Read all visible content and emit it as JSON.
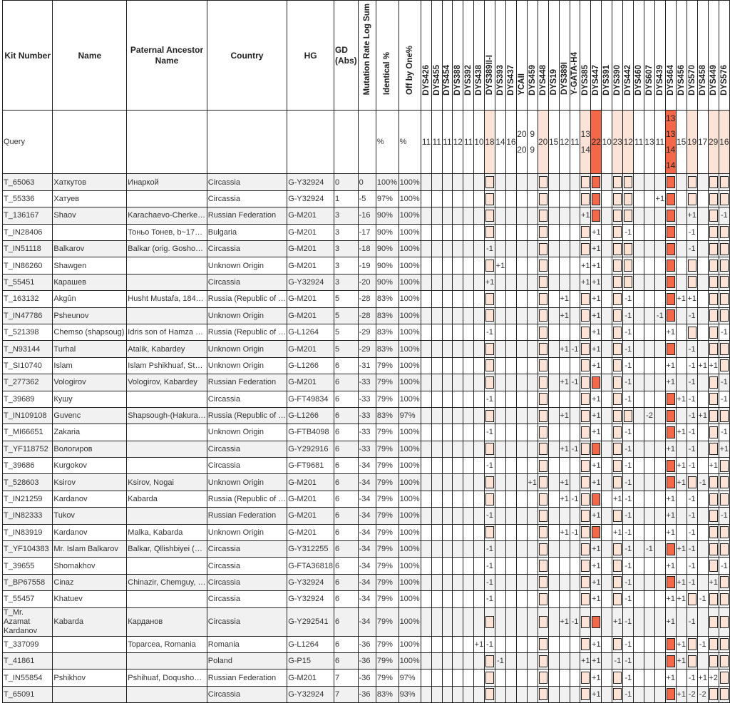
{
  "headers": {
    "kit": "Kit Number",
    "name": "Name",
    "ancestor": "Paternal Ancestor Name",
    "country": "Country",
    "hg": "HG",
    "gd": "GD (Abs)",
    "mutation": "Mutation Rate Log Sum",
    "identical": "Identical %",
    "offbyone": "Off by One%",
    "markers": [
      "DYS426",
      "DYS455",
      "DYS454",
      "DYS388",
      "DYS392",
      "DYS438",
      "DYS389II-I",
      "DYS393",
      "DYS437",
      "YCAII",
      "DYS459",
      "DYS448",
      "DYS19",
      "DYS389I",
      "Y-GATA-H4",
      "DYS385",
      "DYS447",
      "DYS391",
      "DYS390",
      "DYS442",
      "DYS460",
      "DYS607",
      "DYS439",
      "DYS464",
      "DYS456",
      "DYS570",
      "DYS458",
      "DYS449",
      "DYS576"
    ]
  },
  "query": {
    "kit": "Query",
    "identical": "%",
    "offbyone": "%",
    "values": [
      "11",
      "11",
      "11",
      "12",
      "11",
      "10",
      "18",
      "14",
      "16",
      "20\n20",
      "9\n9",
      "20",
      "15",
      "12",
      "11",
      "13\n14",
      "22",
      "10",
      "23",
      "12",
      "11",
      "13",
      "11",
      "13\n13\n14\n14",
      "15",
      "19",
      "17",
      "29",
      "16"
    ],
    "highlight_light": [
      7,
      12,
      16,
      19,
      20,
      26,
      28,
      29
    ],
    "highlight_dark": [
      17,
      24
    ]
  },
  "colors": {
    "light": "#fde2d6",
    "dark": "#f26849",
    "zebra": "#f1f1f1"
  },
  "rows": [
    {
      "kit": "T_65063",
      "name": "Хаткутов",
      "ancestor": "Инаркой",
      "country": "Circassia",
      "hg": "G-Y32924",
      "gd": "0",
      "mr": "0",
      "ident": "100%",
      "off": "100%",
      "m": {
        "7": "L",
        "12": "L",
        "16": "L",
        "17": "D",
        "19": "L",
        "20": "L",
        "24": "D",
        "26": "L",
        "28": "L",
        "29": "L"
      }
    },
    {
      "kit": "T_55336",
      "name": "Хатуев",
      "ancestor": "",
      "country": "Circassia",
      "hg": "G-Y32924",
      "gd": "1",
      "mr": "-5",
      "ident": "97%",
      "off": "100%",
      "m": {
        "7": "L",
        "12": "L",
        "16": "L",
        "17": "D",
        "19": "L",
        "20": "L",
        "23": "+1",
        "24": "D",
        "26": "L",
        "28": "L",
        "29": "L"
      }
    },
    {
      "kit": "T_136167",
      "name": "Shaov",
      "ancestor": "Karachaevo-Cherke…",
      "country": "Russian Federation",
      "hg": "G-M201",
      "gd": "3",
      "mr": "-16",
      "ident": "90%",
      "off": "100%",
      "m": {
        "7": "L",
        "12": "L",
        "16": "+1",
        "17": "D",
        "19": "L",
        "20": "L",
        "24": "D",
        "26": "+1",
        "28": "L",
        "29": "-1"
      }
    },
    {
      "kit": "T_IN28406",
      "name": "",
      "ancestor": "Тоньо Тонев, b~17…",
      "country": "Bulgaria",
      "hg": "G-M201",
      "gd": "3",
      "mr": "-17",
      "ident": "90%",
      "off": "100%",
      "m": {
        "7": "L",
        "12": "L",
        "16": "L",
        "17": "+1",
        "19": "L",
        "20": "-1",
        "24": "D",
        "26": "-1",
        "28": "L",
        "29": "L"
      }
    },
    {
      "kit": "T_IN51118",
      "name": "Balkarov",
      "ancestor": "Balkar (orig. Gosho…",
      "country": "Circassia",
      "hg": "G-M201",
      "gd": "3",
      "mr": "-18",
      "ident": "90%",
      "off": "100%",
      "m": {
        "7": "-1",
        "12": "L",
        "16": "L",
        "17": "+1",
        "19": "L",
        "20": "L",
        "24": "D",
        "26": "-1",
        "28": "L",
        "29": "L"
      }
    },
    {
      "kit": "T_IN86260",
      "name": "Shawgen",
      "ancestor": "",
      "country": "Unknown Origin",
      "hg": "G-M201",
      "gd": "3",
      "mr": "-19",
      "ident": "90%",
      "off": "100%",
      "m": {
        "7": "L",
        "8": "+1",
        "12": "L",
        "16": "+1",
        "17": "+1",
        "19": "L",
        "20": "L",
        "24": "D",
        "26": "L",
        "28": "L",
        "29": "L"
      }
    },
    {
      "kit": "T_55451",
      "name": "Карашев",
      "ancestor": "",
      "country": "Circassia",
      "hg": "G-Y32924",
      "gd": "3",
      "mr": "-20",
      "ident": "90%",
      "off": "100%",
      "m": {
        "7": "+1",
        "12": "L",
        "16": "+1",
        "17": "+1",
        "19": "L",
        "20": "L",
        "24": "D",
        "26": "L",
        "28": "L",
        "29": "L"
      }
    },
    {
      "kit": "T_163132",
      "name": "Akgûn",
      "ancestor": "Husht Mustafa, 184…",
      "country": "Russia (Republic of …",
      "hg": "G-M201",
      "gd": "5",
      "mr": "-28",
      "ident": "83%",
      "off": "100%",
      "m": {
        "7": "L",
        "12": "L",
        "14": "+1",
        "16": "L",
        "17": "+1",
        "19": "L",
        "20": "-1",
        "24": "D",
        "25": "+1",
        "26": "+1",
        "28": "L",
        "29": "L"
      }
    },
    {
      "kit": "T_IN47786",
      "name": "Psheunov",
      "ancestor": "",
      "country": "Unknown Origin",
      "hg": "G-M201",
      "gd": "5",
      "mr": "-28",
      "ident": "83%",
      "off": "100%",
      "m": {
        "7": "L",
        "12": "L",
        "14": "+1",
        "16": "L",
        "17": "+1",
        "19": "L",
        "20": "-1",
        "23": "-1",
        "24": "D",
        "26": "-1",
        "28": "L",
        "29": "L"
      }
    },
    {
      "kit": "T_521398",
      "name": "Chemso (shapsoug)",
      "ancestor": "Idris son of Hamza …",
      "country": "Russia (Republic of …",
      "hg": "G-L1264",
      "gd": "5",
      "mr": "-29",
      "ident": "83%",
      "off": "100%",
      "m": {
        "7": "-1",
        "12": "L",
        "16": "L",
        "17": "+1",
        "19": "L",
        "20": "-1",
        "24": "+1",
        "26": "L",
        "28": "L",
        "29": "-1"
      }
    },
    {
      "kit": "T_N93144",
      "name": "Turhal",
      "ancestor": "Atalik, Kabardey",
      "country": "Unknown Origin",
      "hg": "G-M201",
      "gd": "5",
      "mr": "-29",
      "ident": "83%",
      "off": "100%",
      "m": {
        "7": "L",
        "12": "L",
        "14": "+1",
        "15": "-1",
        "16": "L",
        "17": "+1",
        "19": "L",
        "20": "-1",
        "24": "D",
        "26": "-1",
        "28": "L",
        "29": "L"
      }
    },
    {
      "kit": "T_SI10740",
      "name": "Islam",
      "ancestor": "Islam Pshikhuaf, St…",
      "country": "Unknown Origin",
      "hg": "G-L1266",
      "gd": "6",
      "mr": "-31",
      "ident": "79%",
      "off": "100%",
      "m": {
        "7": "L",
        "12": "L",
        "16": "L",
        "17": "+1",
        "19": "L",
        "20": "-1",
        "24": "+1",
        "26": "-1",
        "27": "+1",
        "28": "+1",
        "29": "L"
      }
    },
    {
      "kit": "T_277362",
      "name": "Vologirov",
      "ancestor": "Vologirov, Kabardey",
      "country": "Russian Federation",
      "hg": "G-M201",
      "gd": "6",
      "mr": "-33",
      "ident": "79%",
      "off": "100%",
      "m": {
        "7": "L",
        "12": "L",
        "14": "+1",
        "15": "-1",
        "16": "L",
        "17": "D",
        "19": "L",
        "20": "-1",
        "24": "+1",
        "26": "-1",
        "28": "L",
        "29": "-1"
      }
    },
    {
      "kit": "T_39689",
      "name": "Кушу",
      "ancestor": "",
      "country": "Circassia",
      "hg": "G-FT49834",
      "gd": "6",
      "mr": "-33",
      "ident": "79%",
      "off": "100%",
      "m": {
        "7": "-1",
        "12": "L",
        "16": "L",
        "17": "+1",
        "19": "L",
        "20": "-1",
        "24": "D",
        "25": "+1",
        "26": "-1",
        "28": "L",
        "29": "-1"
      }
    },
    {
      "kit": "T_IN109108",
      "name": "Guvenc",
      "ancestor": "Shapsough-(Hakura…",
      "country": "Russia (Republic of …",
      "hg": "G-L1266",
      "gd": "6",
      "mr": "-33",
      "ident": "83%",
      "off": "97%",
      "m": {
        "7": "L",
        "12": "L",
        "14": "+1",
        "16": "L",
        "17": "+1",
        "19": "L",
        "20": "L",
        "22": "-2",
        "24": "D",
        "26": "-1",
        "27": "+1",
        "28": "L",
        "29": "L"
      }
    },
    {
      "kit": "T_MI66651",
      "name": "Zakaria",
      "ancestor": "",
      "country": "Unknown Origin",
      "hg": "G-FTB4098",
      "gd": "6",
      "mr": "-33",
      "ident": "79%",
      "off": "100%",
      "m": {
        "7": "-1",
        "12": "L",
        "16": "L",
        "17": "+1",
        "19": "L",
        "20": "-1",
        "24": "D",
        "25": "+1",
        "26": "-1",
        "28": "L",
        "29": "-1"
      }
    },
    {
      "kit": "T_YF118752",
      "name": "Вологиров",
      "ancestor": "",
      "country": "Circassia",
      "hg": "G-Y292916",
      "gd": "6",
      "mr": "-33",
      "ident": "79%",
      "off": "100%",
      "m": {
        "7": "L",
        "12": "L",
        "14": "+1",
        "15": "-1",
        "16": "L",
        "17": "D",
        "19": "L",
        "20": "-1",
        "24": "+1",
        "26": "-1",
        "28": "L",
        "29": "+1"
      }
    },
    {
      "kit": "T_39686",
      "name": "Kurgokov",
      "ancestor": "",
      "country": "Circassia",
      "hg": "G-FT9681",
      "gd": "6",
      "mr": "-34",
      "ident": "79%",
      "off": "100%",
      "m": {
        "7": "-1",
        "12": "L",
        "16": "L",
        "17": "+1",
        "19": "L",
        "20": "-1",
        "24": "D",
        "25": "+1",
        "26": "-1",
        "28": "+1",
        "29": "L"
      }
    },
    {
      "kit": "T_528603",
      "name": "Ksirov",
      "ancestor": "Ksirov, Nogai",
      "country": "Unknown Origin",
      "hg": "G-M201",
      "gd": "6",
      "mr": "-34",
      "ident": "79%",
      "off": "100%",
      "m": {
        "7": "L",
        "11": "+1",
        "12": "L",
        "14": "+1",
        "16": "L",
        "17": "+1",
        "19": "L",
        "20": "-1",
        "24": "D",
        "25": "+1",
        "26": "L",
        "27": "-1",
        "28": "L",
        "29": "L"
      }
    },
    {
      "kit": "T_IN21259",
      "name": "Kardanov",
      "ancestor": "Kabarda",
      "country": "Russia (Republic of …",
      "hg": "G-M201",
      "gd": "6",
      "mr": "-34",
      "ident": "79%",
      "off": "100%",
      "m": {
        "7": "L",
        "12": "L",
        "14": "+1",
        "15": "-1",
        "16": "L",
        "17": "D",
        "19": "+1",
        "20": "-1",
        "24": "+1",
        "26": "-1",
        "28": "L",
        "29": "L"
      }
    },
    {
      "kit": "T_IN82333",
      "name": "Tukov",
      "ancestor": "",
      "country": "Russian Federation",
      "hg": "G-M201",
      "gd": "6",
      "mr": "-34",
      "ident": "79%",
      "off": "100%",
      "m": {
        "7": "-1",
        "12": "L",
        "16": "L",
        "17": "+1",
        "19": "L",
        "20": "-1",
        "24": "+1",
        "26": "-1",
        "28": "L",
        "29": "-1"
      }
    },
    {
      "kit": "T_IN83919",
      "name": "Kardanov",
      "ancestor": "Malka, Kabarda",
      "country": "Unknown Origin",
      "hg": "G-M201",
      "gd": "6",
      "mr": "-34",
      "ident": "79%",
      "off": "100%",
      "m": {
        "7": "L",
        "12": "L",
        "14": "+1",
        "15": "-1",
        "16": "L",
        "17": "D",
        "19": "+1",
        "20": "-1",
        "24": "+1",
        "26": "-1",
        "28": "L",
        "29": "L"
      }
    },
    {
      "kit": "T_YF104383",
      "name": "Mr. Islam Balkarov",
      "ancestor": "Balkar, Qllishbiyei (…",
      "country": "Circassia",
      "hg": "G-Y312255",
      "gd": "6",
      "mr": "-34",
      "ident": "79%",
      "off": "100%",
      "m": {
        "7": "-1",
        "12": "L",
        "16": "L",
        "17": "+1",
        "19": "L",
        "20": "-1",
        "22": "-1",
        "24": "D",
        "25": "+1",
        "26": "-1",
        "28": "L",
        "29": "L"
      }
    },
    {
      "kit": "T_39655",
      "name": "Shomakhov",
      "ancestor": "",
      "country": "Circassia",
      "hg": "G-FTA36818",
      "gd": "6",
      "mr": "-34",
      "ident": "79%",
      "off": "100%",
      "m": {
        "7": "-1",
        "12": "L",
        "16": "L",
        "17": "+1",
        "19": "L",
        "20": "-1",
        "24": "+1",
        "26": "-1",
        "28": "L",
        "29": "-1"
      }
    },
    {
      "kit": "T_BP67558",
      "name": "Cinaz",
      "ancestor": "Chinazir, Chemguy, …",
      "country": "Circassia",
      "hg": "G-Y32924",
      "gd": "6",
      "mr": "-34",
      "ident": "79%",
      "off": "100%",
      "m": {
        "7": "-1",
        "12": "L",
        "16": "L",
        "17": "+1",
        "19": "L",
        "20": "-1",
        "24": "D",
        "25": "+1",
        "26": "-1",
        "28": "+1",
        "29": "L"
      }
    },
    {
      "kit": "T_55457",
      "name": "Khatuev",
      "ancestor": "",
      "country": "Circassia",
      "hg": "G-Y32924",
      "gd": "6",
      "mr": "-34",
      "ident": "79%",
      "off": "100%",
      "m": {
        "7": "-1",
        "12": "L",
        "16": "L",
        "17": "+1",
        "19": "L",
        "20": "-1",
        "24": "+1",
        "25": "+1",
        "26": "L",
        "27": "-1",
        "28": "L",
        "29": "L"
      }
    },
    {
      "kit": "T_Mr. Azamat Kardanov",
      "name": "Kabarda",
      "ancestor": "Карданов",
      "country": "Circassia",
      "hg": "G-Y292541",
      "gd": "6",
      "mr": "-34",
      "ident": "79%",
      "off": "100%",
      "tall": true,
      "m": {
        "7": "L",
        "12": "L",
        "14": "+1",
        "15": "-1",
        "16": "L",
        "17": "D",
        "19": "+1",
        "20": "-1",
        "24": "+1",
        "26": "-1",
        "28": "L",
        "29": "L"
      }
    },
    {
      "kit": "T_337099",
      "name": "",
      "ancestor": "Toparcea, Romania",
      "country": "Romania",
      "hg": "G-L1264",
      "gd": "6",
      "mr": "-36",
      "ident": "79%",
      "off": "100%",
      "m": {
        "6": "+1",
        "7": "-1",
        "12": "L",
        "16": "L",
        "17": "+1",
        "19": "L",
        "20": "-1",
        "24": "D",
        "25": "+1",
        "26": "L",
        "27": "-1",
        "28": "L",
        "29": "L"
      }
    },
    {
      "kit": "T_41861",
      "name": "",
      "ancestor": "",
      "country": "Poland",
      "hg": "G-P15",
      "gd": "6",
      "mr": "-36",
      "ident": "79%",
      "off": "100%",
      "m": {
        "7": "L",
        "8": "-1",
        "12": "L",
        "16": "+1",
        "17": "+1",
        "19": "-1",
        "20": "-1",
        "24": "D",
        "25": "+1",
        "26": "L",
        "28": "L",
        "29": "L"
      }
    },
    {
      "kit": "T_IN55854",
      "name": "Pshikhov",
      "ancestor": "Pshihuaf, Doqusho…",
      "country": "Russian Federation",
      "hg": "G-M201",
      "gd": "7",
      "mr": "-36",
      "ident": "79%",
      "off": "97%",
      "m": {
        "7": "L",
        "12": "L",
        "16": "L",
        "17": "+1",
        "19": "L",
        "20": "-1",
        "24": "+1",
        "26": "-1",
        "27": "+1",
        "28": "+2",
        "29": "L"
      }
    },
    {
      "kit": "T_65091",
      "name": "",
      "ancestor": "",
      "country": "Circassia",
      "hg": "G-Y32924",
      "gd": "7",
      "mr": "-36",
      "ident": "83%",
      "off": "93%",
      "m": {
        "7": "L",
        "12": "L",
        "16": "L",
        "17": "+1",
        "19": "L",
        "20": "-1",
        "24": "D",
        "25": "+1",
        "26": "-2",
        "27": "-2",
        "28": "L",
        "29": "L"
      }
    }
  ]
}
